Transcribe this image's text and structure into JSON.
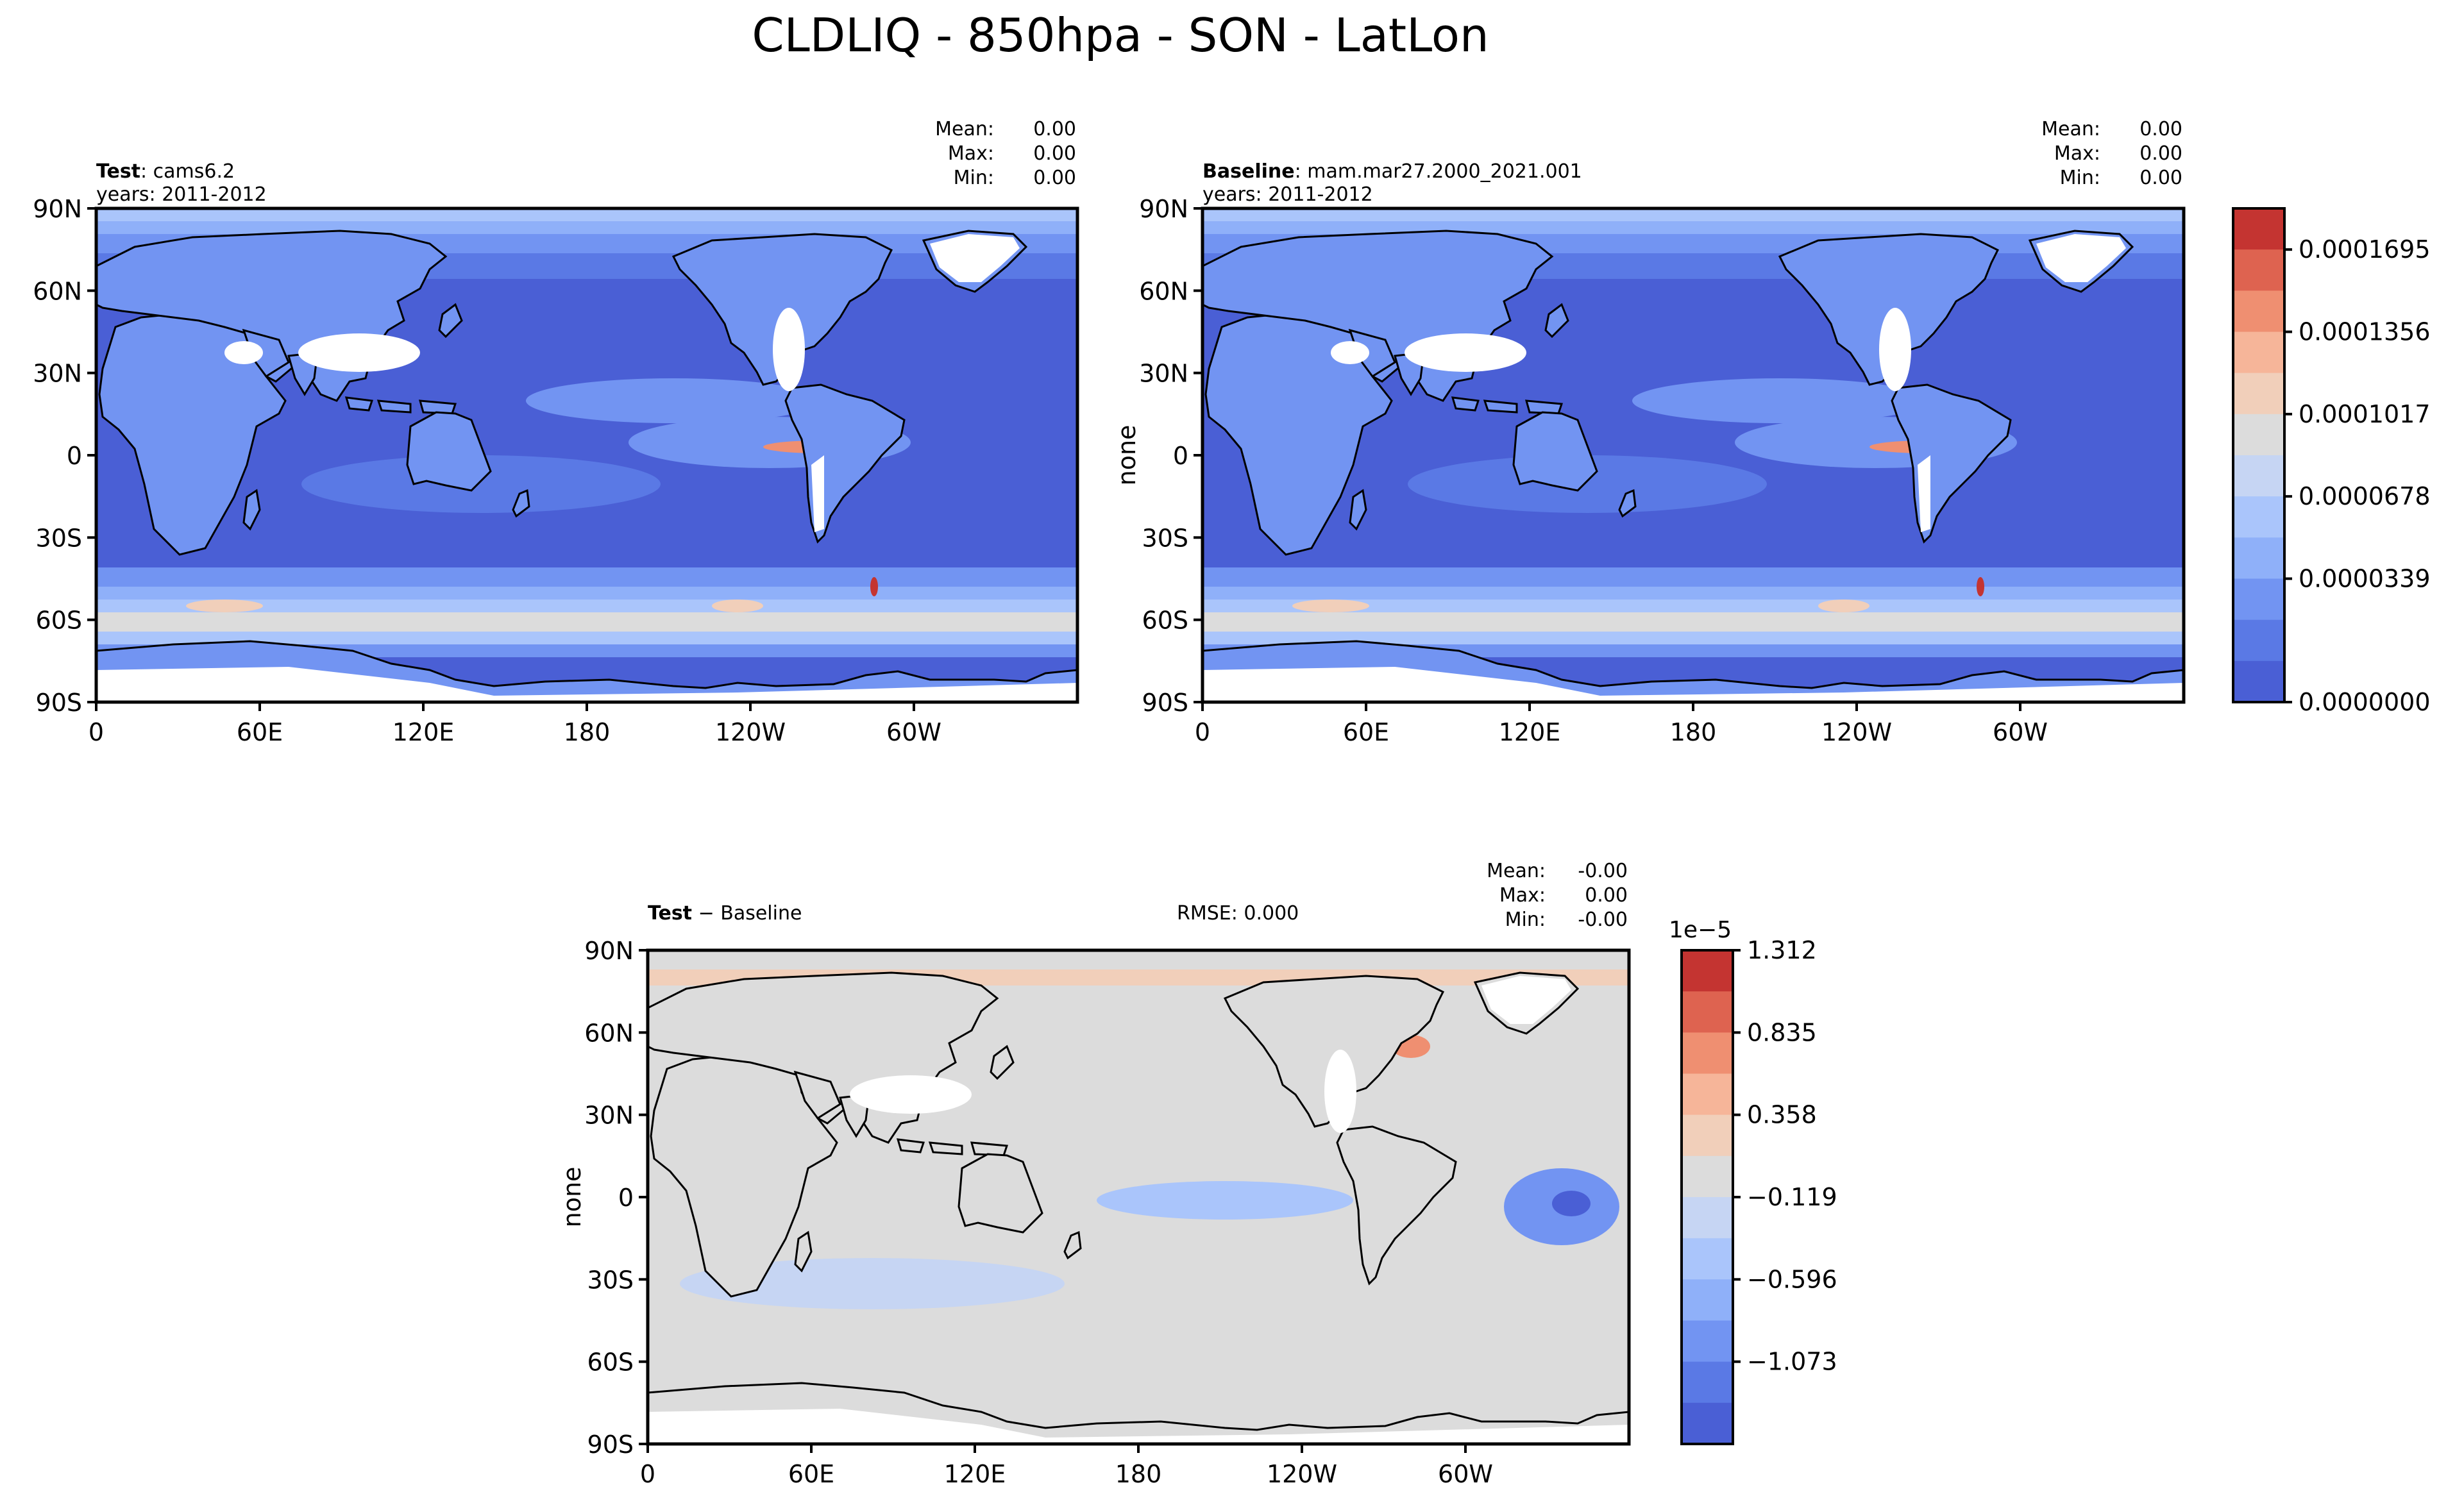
{
  "title": "CLDLIQ - 850hpa - SON - LatLon",
  "panels": {
    "test": {
      "label_bold": "Test",
      "label_rest": ": cams6.2",
      "years": "years: 2011-2012",
      "stats": [
        [
          "Mean:",
          "0.00"
        ],
        [
          "Max:",
          "0.00"
        ],
        [
          "Min:",
          "0.00"
        ]
      ],
      "ylabel": ""
    },
    "baseline": {
      "label_bold": "Baseline",
      "label_rest": ": mam.mar27.2000_2021.001",
      "years": "years: 2011-2012",
      "stats": [
        [
          "Mean:",
          "0.00"
        ],
        [
          "Max:",
          "0.00"
        ],
        [
          "Min:",
          "0.00"
        ]
      ],
      "ylabel": "none"
    },
    "diff": {
      "label_bold": "Test",
      "label_rest": " − Baseline",
      "rmse": "RMSE: 0.000",
      "stats": [
        [
          "Mean:",
          "-0.00"
        ],
        [
          "Max:",
          "0.00"
        ],
        [
          "Min:",
          "-0.00"
        ]
      ],
      "ylabel": "none"
    }
  },
  "axes": {
    "lat_ticks": [
      "90N",
      "60N",
      "30N",
      "0",
      "30S",
      "60S",
      "90S"
    ],
    "lon_ticks": [
      "0",
      "60E",
      "120E",
      "180",
      "120W",
      "60W"
    ]
  },
  "colorbars": {
    "main": {
      "labels": [
        "0.0001695",
        "0.0001356",
        "0.0001017",
        "0.0000678",
        "0.0000339",
        "0.0000000"
      ],
      "colors": [
        "#c43431",
        "#de6350",
        "#ef8f71",
        "#f6b599",
        "#f1cfba",
        "#dcdcdc",
        "#c6d5f3",
        "#aac5fb",
        "#8fb0f9",
        "#7294f2",
        "#5a79e5",
        "#4a5fd5"
      ]
    },
    "diff": {
      "exponent": "1e−5",
      "labels": [
        "1.312",
        "0.835",
        "0.358",
        "−0.119",
        "−0.596",
        "−1.073"
      ],
      "colors": [
        "#c43431",
        "#de6350",
        "#ef8f71",
        "#f6b599",
        "#f1cfba",
        "#dcdcdc",
        "#c6d5f3",
        "#aac5fb",
        "#8fb0f9",
        "#7294f2",
        "#5a79e5",
        "#4a5fd5"
      ]
    }
  },
  "map_colors": {
    "ocean_low": "#4a5fd5",
    "band2": "#5a79e5",
    "band3": "#7294f2",
    "band4": "#8fb0f9",
    "band5": "#aac5fb",
    "band6": "#c6d5f3",
    "neutral": "#dcdcdc",
    "warm1": "#f1cfba",
    "warm2": "#ef8f71",
    "hot": "#c43431",
    "missing": "#ffffff"
  }
}
